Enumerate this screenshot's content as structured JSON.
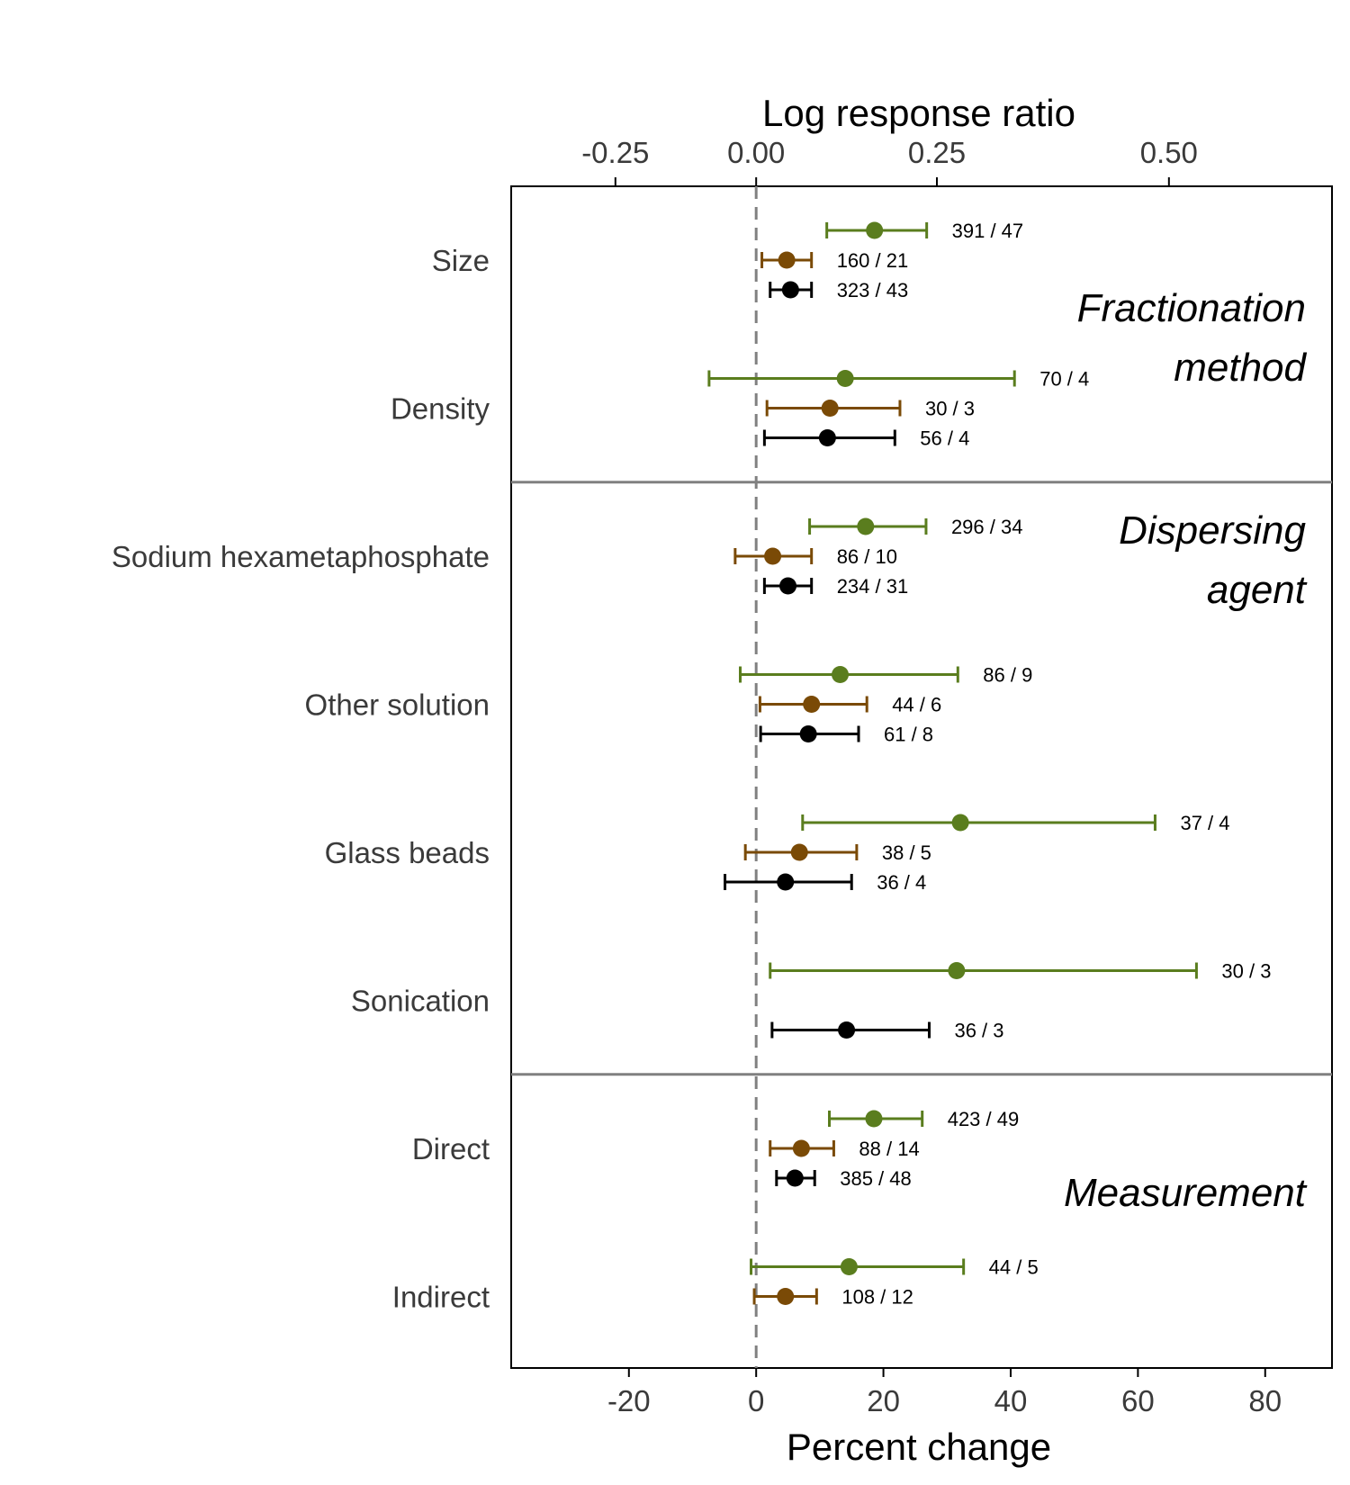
{
  "chart_data": {
    "type": "scatter",
    "subtype": "forest-plot",
    "title": "",
    "xlabel": "Percent change",
    "x2label": "Log response ratio",
    "xlim": [
      -38.5,
      90.5
    ],
    "xticks": [
      -20,
      0,
      20,
      40,
      60,
      80
    ],
    "x2ticks": [
      -0.25,
      0.0,
      0.25,
      0.5
    ],
    "x2tick_labels": [
      "-0.25",
      "0.00",
      "0.25",
      "0.50"
    ],
    "reference_line": 0,
    "series_colors": [
      "#5a7d1e",
      "#7a4a06",
      "#000000"
    ],
    "groups": [
      {
        "label_lines": [
          "Fractionation",
          "method"
        ],
        "categories": [
          "Size",
          "Density"
        ]
      },
      {
        "label_lines": [
          "Dispersing",
          "agent"
        ],
        "categories": [
          "Sodium hexametaphosphate",
          "Other solution",
          "Glass beads",
          "Sonication"
        ]
      },
      {
        "label_lines": [
          "Measurement"
        ],
        "categories": [
          "Direct",
          "Indirect"
        ]
      }
    ],
    "rows": [
      {
        "category": "Size",
        "points": [
          {
            "series": 0,
            "est": 18.6,
            "lo": 11.1,
            "hi": 26.8,
            "label": "391 / 47"
          },
          {
            "series": 1,
            "est": 4.8,
            "lo": 0.9,
            "hi": 8.7,
            "label": "160 / 21"
          },
          {
            "series": 2,
            "est": 5.4,
            "lo": 2.2,
            "hi": 8.7,
            "label": "323 / 43"
          }
        ]
      },
      {
        "category": "Density",
        "points": [
          {
            "series": 0,
            "est": 14.0,
            "lo": -7.4,
            "hi": 40.6,
            "label": "70 / 4"
          },
          {
            "series": 1,
            "est": 11.6,
            "lo": 1.7,
            "hi": 22.6,
            "label": "30 / 3"
          },
          {
            "series": 2,
            "est": 11.2,
            "lo": 1.3,
            "hi": 21.8,
            "label": "56 / 4"
          }
        ]
      },
      {
        "category": "Sodium hexametaphosphate",
        "points": [
          {
            "series": 0,
            "est": 17.2,
            "lo": 8.4,
            "hi": 26.7,
            "label": "296 / 34"
          },
          {
            "series": 1,
            "est": 2.6,
            "lo": -3.3,
            "hi": 8.7,
            "label": "86 / 10"
          },
          {
            "series": 2,
            "est": 5.0,
            "lo": 1.3,
            "hi": 8.7,
            "label": "234 / 31"
          }
        ]
      },
      {
        "category": "Other solution",
        "points": [
          {
            "series": 0,
            "est": 13.2,
            "lo": -2.5,
            "hi": 31.7,
            "label": "86 / 9"
          },
          {
            "series": 1,
            "est": 8.7,
            "lo": 0.6,
            "hi": 17.4,
            "label": "44 / 6"
          },
          {
            "series": 2,
            "est": 8.2,
            "lo": 0.7,
            "hi": 16.1,
            "label": "61 / 8"
          }
        ]
      },
      {
        "category": "Glass beads",
        "points": [
          {
            "series": 0,
            "est": 32.1,
            "lo": 7.3,
            "hi": 62.7,
            "label": "37 / 4"
          },
          {
            "series": 1,
            "est": 6.8,
            "lo": -1.7,
            "hi": 15.8,
            "label": "38 / 5"
          },
          {
            "series": 2,
            "est": 4.6,
            "lo": -4.9,
            "hi": 15.0,
            "label": "36 / 4"
          }
        ]
      },
      {
        "category": "Sonication",
        "points": [
          {
            "series": 0,
            "est": 31.5,
            "lo": 2.2,
            "hi": 69.2,
            "label": "30 / 3"
          },
          null,
          {
            "series": 2,
            "est": 14.2,
            "lo": 2.5,
            "hi": 27.2,
            "label": "36 / 3"
          }
        ]
      },
      {
        "category": "Direct",
        "points": [
          {
            "series": 0,
            "est": 18.5,
            "lo": 11.5,
            "hi": 26.1,
            "label": "423 / 49"
          },
          {
            "series": 1,
            "est": 7.1,
            "lo": 2.2,
            "hi": 12.2,
            "label": "88 / 14"
          },
          {
            "series": 2,
            "est": 6.1,
            "lo": 3.2,
            "hi": 9.2,
            "label": "385 / 48"
          }
        ]
      },
      {
        "category": "Indirect",
        "points": [
          {
            "series": 0,
            "est": 14.6,
            "lo": -0.8,
            "hi": 32.6,
            "label": "44 / 5"
          },
          {
            "series": 1,
            "est": 4.6,
            "lo": -0.3,
            "hi": 9.5,
            "label": "108 / 12"
          },
          null
        ]
      }
    ]
  }
}
